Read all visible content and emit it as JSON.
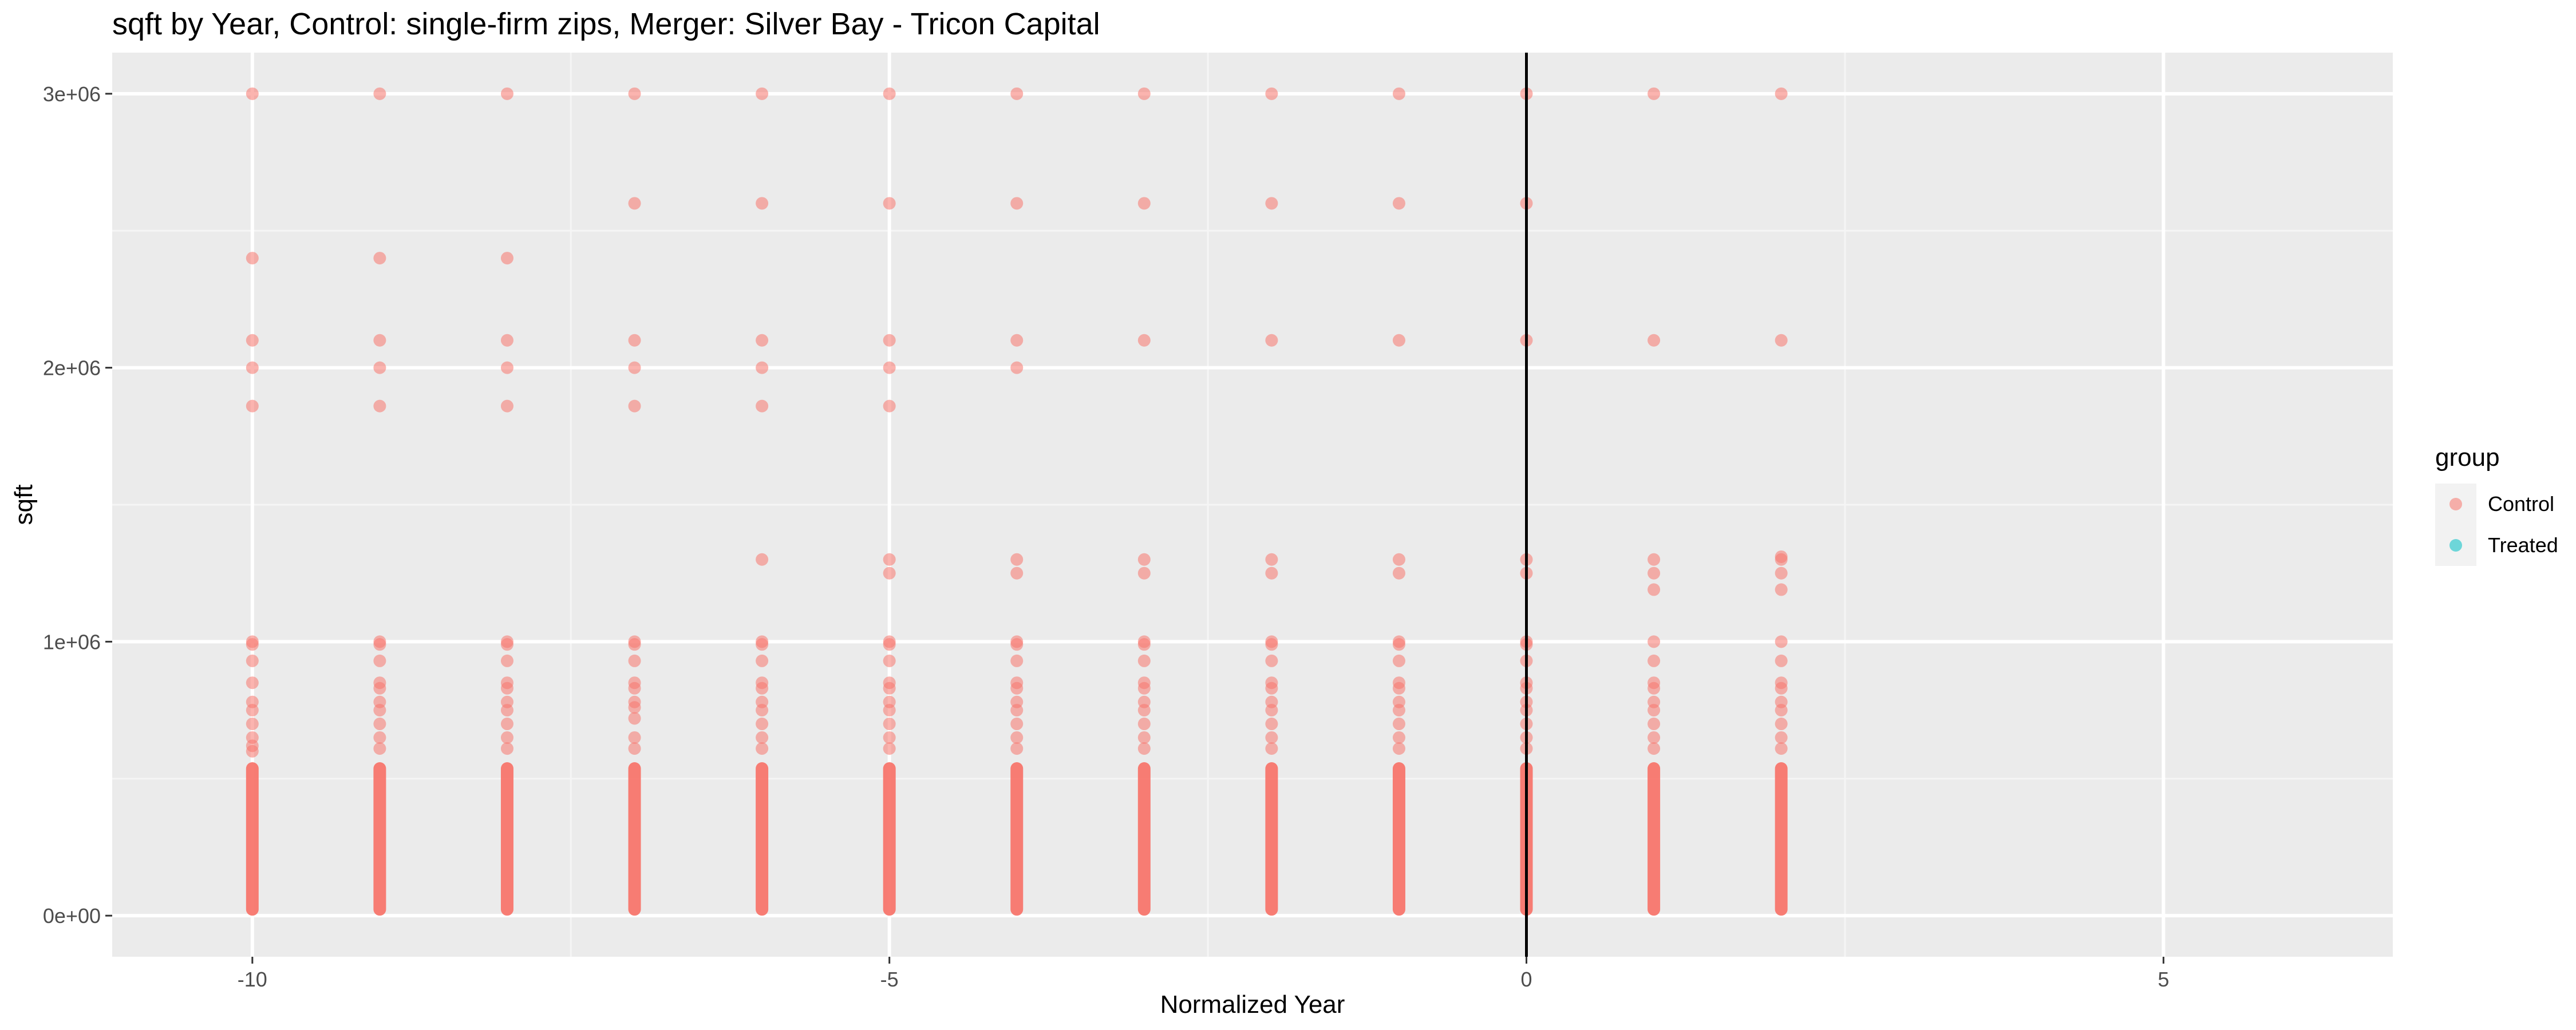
{
  "chart_data": {
    "type": "scatter",
    "title": "sqft by Year, Control: single-firm zips, Merger: Silver Bay - Tricon Capital",
    "xlabel": "Normalized Year",
    "ylabel": "sqft",
    "xlim": [
      -11.1,
      6.8
    ],
    "ylim": [
      -150000,
      3150000
    ],
    "x_ticks": [
      -10,
      -5,
      0,
      5
    ],
    "x_tick_labels": [
      "-10",
      "-5",
      "0",
      "5"
    ],
    "y_ticks": [
      0,
      1000000,
      2000000,
      3000000
    ],
    "y_tick_labels": [
      "0e+00",
      "1e+06",
      "2e+06",
      "3e+06"
    ],
    "grid": true,
    "reference_line": {
      "x": 0,
      "color": "#000000"
    },
    "legend": {
      "title": "group",
      "position": "right",
      "entries": [
        {
          "label": "Control",
          "color": "#F8766D"
        },
        {
          "label": "Treated",
          "color": "#00BFC4"
        }
      ]
    },
    "series": [
      {
        "name": "Control",
        "color": "#F8766D",
        "columns": [
          {
            "x": -10,
            "dense_max": 560000,
            "points": [
              3000000,
              2400000,
              2100000,
              2000000,
              1860000,
              1000000,
              990000,
              930000,
              850000,
              780000,
              750000,
              700000,
              650000,
              620000,
              600000
            ]
          },
          {
            "x": -9,
            "dense_max": 560000,
            "points": [
              3000000,
              2400000,
              2100000,
              2000000,
              1860000,
              1000000,
              990000,
              930000,
              850000,
              830000,
              780000,
              750000,
              700000,
              650000,
              610000
            ]
          },
          {
            "x": -8,
            "dense_max": 560000,
            "points": [
              3000000,
              2400000,
              2100000,
              2000000,
              1860000,
              1000000,
              990000,
              930000,
              850000,
              830000,
              780000,
              750000,
              700000,
              650000,
              610000
            ]
          },
          {
            "x": -7,
            "dense_max": 560000,
            "points": [
              3000000,
              2600000,
              2100000,
              2000000,
              1860000,
              1000000,
              990000,
              930000,
              850000,
              830000,
              780000,
              760000,
              720000,
              650000,
              610000
            ]
          },
          {
            "x": -6,
            "dense_max": 560000,
            "points": [
              3000000,
              2600000,
              2100000,
              2000000,
              1860000,
              1300000,
              1000000,
              990000,
              930000,
              850000,
              830000,
              780000,
              750000,
              700000,
              650000,
              610000
            ]
          },
          {
            "x": -5,
            "dense_max": 560000,
            "points": [
              3000000,
              2600000,
              2100000,
              2000000,
              1860000,
              1300000,
              1250000,
              1000000,
              990000,
              930000,
              850000,
              830000,
              780000,
              750000,
              700000,
              650000,
              610000
            ]
          },
          {
            "x": -4,
            "dense_max": 560000,
            "points": [
              3000000,
              2600000,
              2100000,
              2000000,
              1300000,
              1250000,
              1000000,
              990000,
              930000,
              850000,
              830000,
              780000,
              750000,
              700000,
              650000,
              610000
            ]
          },
          {
            "x": -3,
            "dense_max": 560000,
            "points": [
              3000000,
              2600000,
              2100000,
              1300000,
              1250000,
              1000000,
              990000,
              930000,
              850000,
              830000,
              780000,
              750000,
              700000,
              650000,
              610000
            ]
          },
          {
            "x": -2,
            "dense_max": 560000,
            "points": [
              3000000,
              2600000,
              2100000,
              1300000,
              1250000,
              1000000,
              990000,
              930000,
              850000,
              830000,
              780000,
              750000,
              700000,
              650000,
              610000
            ]
          },
          {
            "x": -1,
            "dense_max": 560000,
            "points": [
              3000000,
              2600000,
              2100000,
              1300000,
              1250000,
              1000000,
              990000,
              930000,
              850000,
              830000,
              780000,
              750000,
              700000,
              650000,
              610000
            ]
          },
          {
            "x": 0,
            "dense_max": 560000,
            "points": [
              3000000,
              2600000,
              2100000,
              1300000,
              1250000,
              1000000,
              990000,
              930000,
              850000,
              830000,
              780000,
              750000,
              700000,
              650000,
              610000
            ]
          },
          {
            "x": 1,
            "dense_max": 560000,
            "points": [
              3000000,
              2100000,
              1300000,
              1250000,
              1190000,
              1000000,
              930000,
              850000,
              830000,
              780000,
              750000,
              700000,
              650000,
              610000
            ]
          },
          {
            "x": 2,
            "dense_max": 560000,
            "points": [
              3000000,
              2100000,
              1310000,
              1300000,
              1250000,
              1190000,
              1000000,
              930000,
              850000,
              830000,
              780000,
              750000,
              700000,
              650000,
              610000
            ]
          }
        ]
      },
      {
        "name": "Treated",
        "color": "#00BFC4",
        "columns": []
      }
    ]
  }
}
